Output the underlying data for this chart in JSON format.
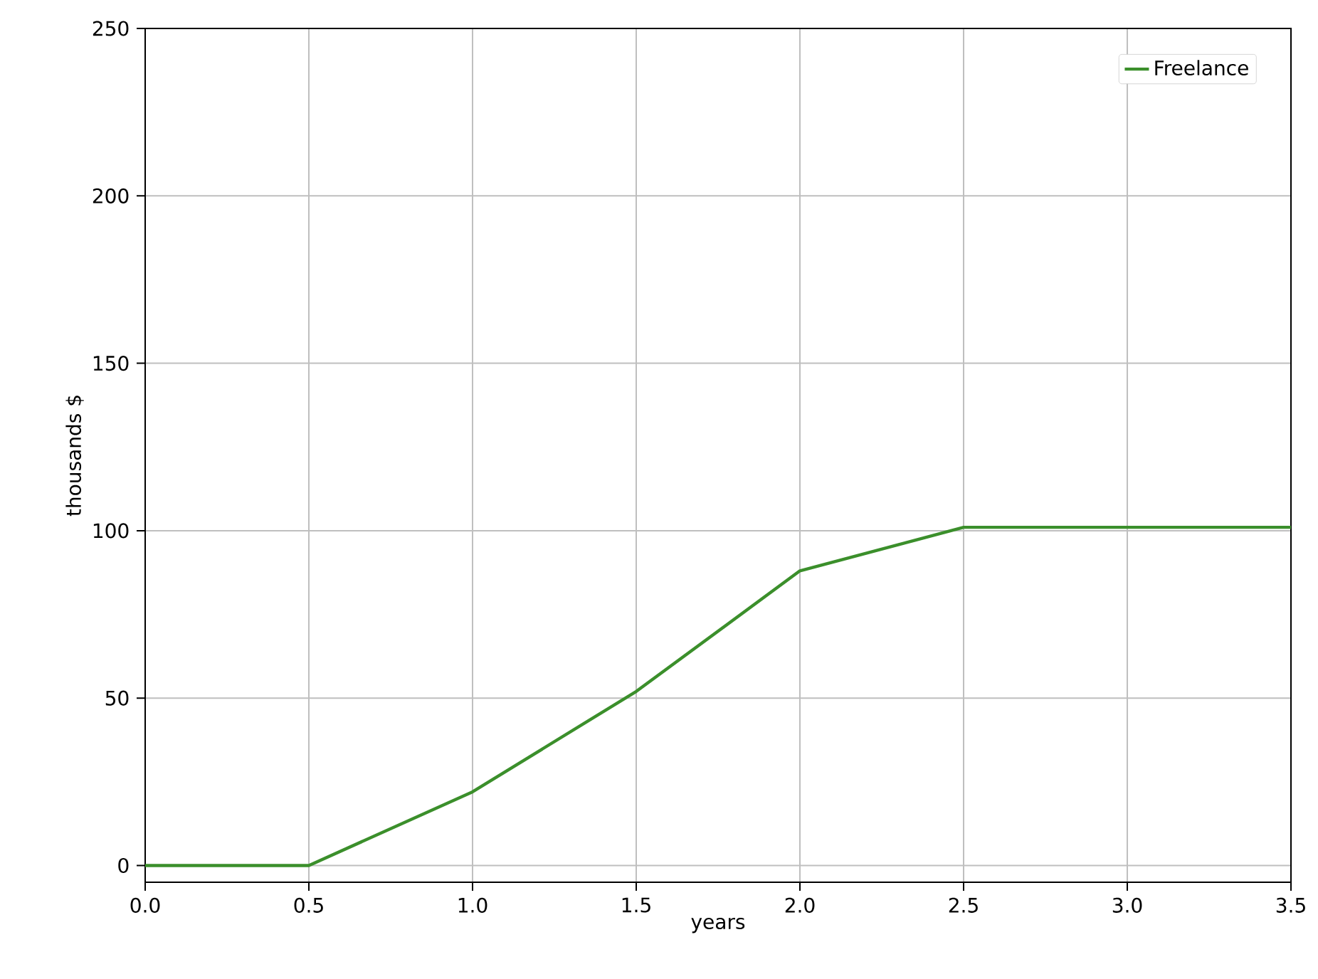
{
  "chart_data": {
    "type": "line",
    "xlabel": "years",
    "ylabel": "thousands $",
    "x": [
      0.0,
      0.5,
      1.0,
      1.5,
      2.0,
      2.5,
      3.5
    ],
    "series": [
      {
        "name": "Freelance",
        "color": "#3b8f2b",
        "values": [
          0,
          0,
          22,
          52,
          88,
          101,
          101
        ]
      }
    ],
    "xlim": [
      0,
      3.5
    ],
    "ylim": [
      -5,
      250
    ],
    "xticks": [
      {
        "value": 0,
        "label": "0.0"
      },
      {
        "value": 0.5,
        "label": "0.5"
      },
      {
        "value": 1,
        "label": "1.0"
      },
      {
        "value": 1.5,
        "label": "1.5"
      },
      {
        "value": 2,
        "label": "2.0"
      },
      {
        "value": 2.5,
        "label": "2.5"
      },
      {
        "value": 3,
        "label": "3.0"
      },
      {
        "value": 3.5,
        "label": "3.5"
      }
    ],
    "yticks": [
      0,
      50,
      100,
      150,
      200,
      250
    ],
    "grid": true,
    "legend": "top right",
    "marker": "none",
    "line_style": "solid"
  }
}
